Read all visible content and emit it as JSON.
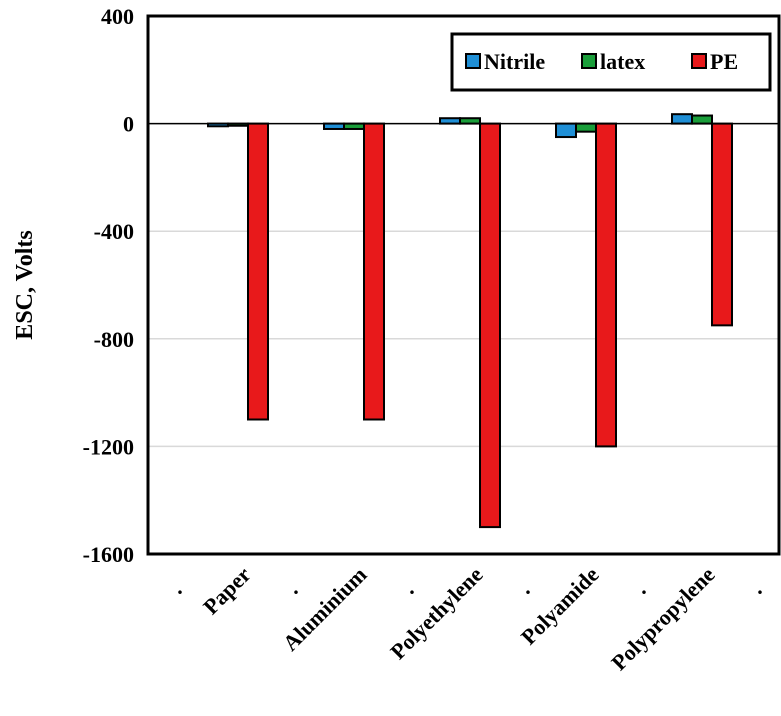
{
  "chart_data": {
    "type": "bar",
    "title": "",
    "ylabel": "ESC, Volts",
    "xlabel": "",
    "ylim": [
      -1600,
      400
    ],
    "yticks": [
      "400",
      "0",
      "-400",
      "-800",
      "-1200",
      "-1600"
    ],
    "categories": [
      "Paper",
      "Aluminium",
      "Polyethylene",
      "Polyamide",
      "Polypropylene"
    ],
    "separator_mark": ".",
    "series": [
      {
        "name": "Nitrile",
        "color": "#1f8fd6",
        "values": [
          -10,
          -20,
          20,
          -50,
          35
        ]
      },
      {
        "name": "latex",
        "color": "#1a9e3a",
        "values": [
          -8,
          -20,
          20,
          -30,
          30
        ]
      },
      {
        "name": "PE",
        "color": "#e8191b",
        "values": [
          -1100,
          -1100,
          -1500,
          -1200,
          -750
        ]
      }
    ],
    "grid": true,
    "legend": "top-right"
  }
}
